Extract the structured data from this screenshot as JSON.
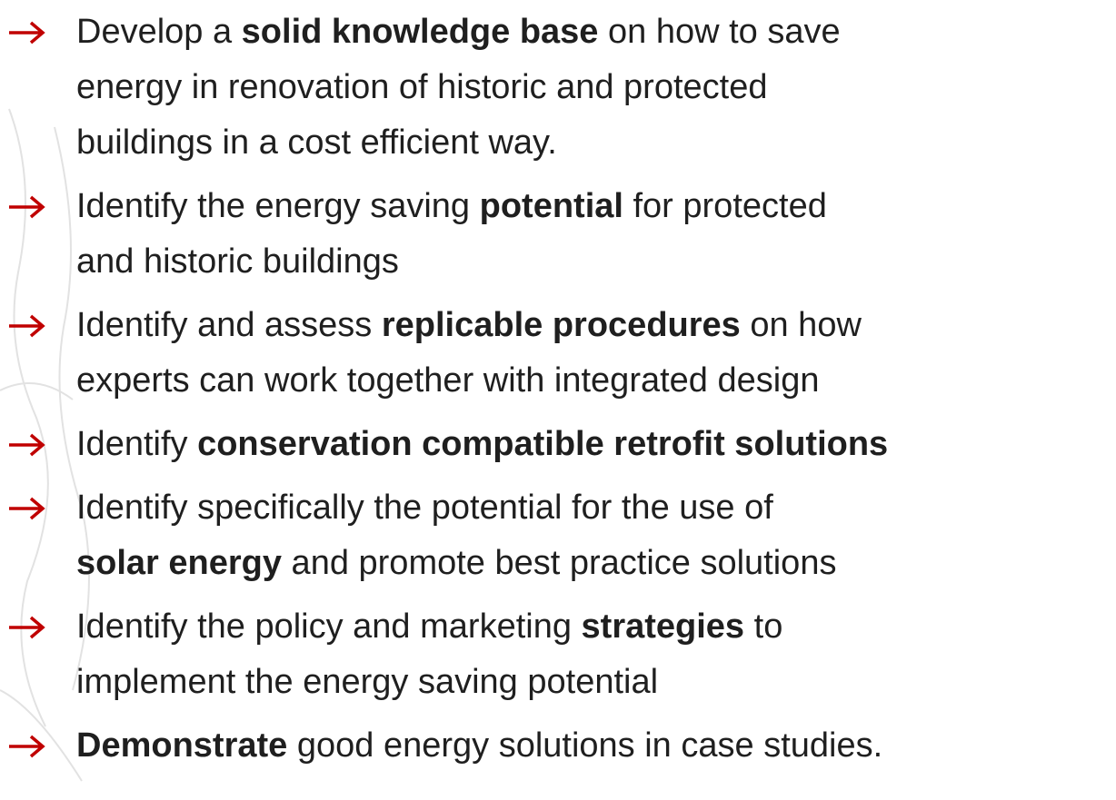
{
  "items": [
    {
      "lines": [
        [
          {
            "text": "Develop a ",
            "bold": false
          },
          {
            "text": "solid knowledge base",
            "bold": true
          },
          {
            "text": " on how to save",
            "bold": false
          }
        ],
        [
          {
            "text": "energy in renovation of historic and protected",
            "bold": false
          }
        ],
        [
          {
            "text": "buildings in a cost efficient way.",
            "bold": false
          }
        ]
      ]
    },
    {
      "lines": [
        [
          {
            "text": "Identify the energy saving ",
            "bold": false
          },
          {
            "text": "potential",
            "bold": true
          },
          {
            "text": " for protected",
            "bold": false
          }
        ],
        [
          {
            "text": "and historic buildings",
            "bold": false
          }
        ]
      ]
    },
    {
      "lines": [
        [
          {
            "text": "Identify and assess ",
            "bold": false
          },
          {
            "text": "replicable procedures",
            "bold": true
          },
          {
            "text": " on how",
            "bold": false
          }
        ],
        [
          {
            "text": "experts can work together with integrated design",
            "bold": false
          }
        ]
      ]
    },
    {
      "lines": [
        [
          {
            "text": "Identify ",
            "bold": false
          },
          {
            "text": "conservation compatible retrofit solutions",
            "bold": true
          }
        ]
      ]
    },
    {
      "lines": [
        [
          {
            "text": "Identify specifically the potential for the use of",
            "bold": false
          }
        ],
        [
          {
            "text": "solar energy",
            "bold": true
          },
          {
            "text": " and promote best practice solutions",
            "bold": false
          }
        ]
      ]
    },
    {
      "lines": [
        [
          {
            "text": "Identify the policy and marketing ",
            "bold": false
          },
          {
            "text": "strategies",
            "bold": true
          },
          {
            "text": " to",
            "bold": false
          }
        ],
        [
          {
            "text": "implement the energy saving potential",
            "bold": false
          }
        ]
      ]
    },
    {
      "lines": [
        [
          {
            "text": "Demonstrate",
            "bold": true
          },
          {
            "text": " good energy solutions in case studies.",
            "bold": false
          }
        ]
      ]
    }
  ]
}
